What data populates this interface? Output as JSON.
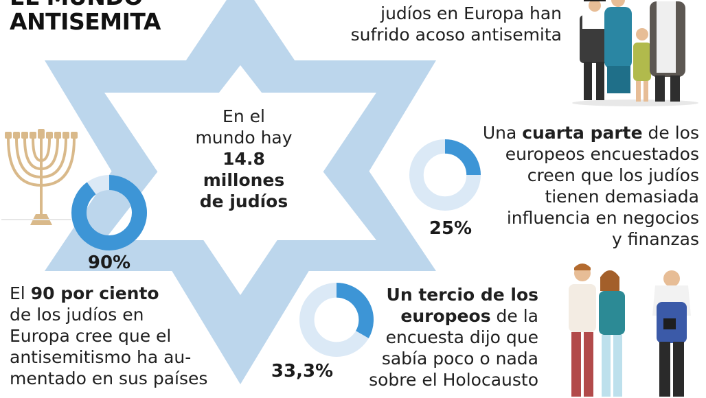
{
  "title": {
    "line1": "EL MUNDO",
    "line2": "ANTISEMITA"
  },
  "stats": {
    "top_right": {
      "line1": "judíos en Europa han",
      "line2": "sufrido acoso antisemita"
    },
    "center": {
      "l1": "En el",
      "l2": "mundo hay",
      "l3": "14.8",
      "l4": "millones",
      "l5": "de judíos"
    },
    "quarter": {
      "l1_a": "Una ",
      "l1_b": "cuarta parte",
      "l1_c": " de los",
      "l2": "europeos encuestados",
      "l3": "creen que los judíos",
      "l4": "tienen demasiada",
      "l5": "influencia en negocios",
      "l6": "y finanzas"
    },
    "ninety": {
      "l1_a": "El ",
      "l1_b": "90 por ciento",
      "l2": "de los judíos en",
      "l3": "Europa cree que el",
      "l4": "antisemitismo ha au-",
      "l5": "mentado en sus países"
    },
    "third": {
      "l1": "Un tercio de los",
      "l2_a": "europeos",
      "l2_b": " de la",
      "l3": "encuesta dijo que",
      "l4": "sabía poco o nada",
      "l5": "sobre el Holocausto"
    }
  },
  "colors": {
    "star": "#bcd6ec",
    "donut_fill": "#3d95d6",
    "donut_track": "#dbe9f6",
    "text": "#1f1f1f"
  },
  "chart_data": [
    {
      "type": "pie",
      "label": "90%",
      "value": 90,
      "unit": "%"
    },
    {
      "type": "pie",
      "label": "25%",
      "value": 25,
      "unit": "%"
    },
    {
      "type": "pie",
      "label": "33,3%",
      "value": 33.3,
      "unit": "%"
    }
  ]
}
